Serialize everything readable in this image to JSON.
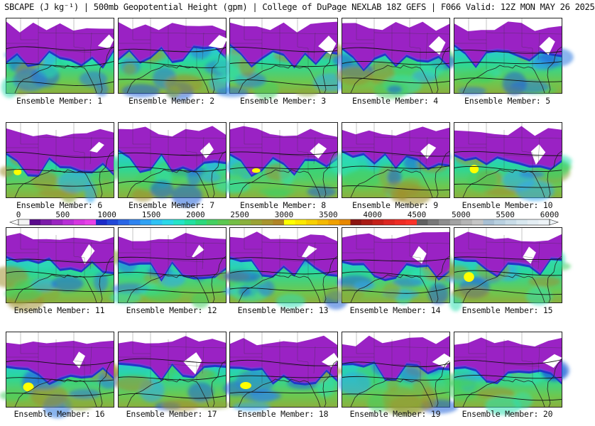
{
  "title": "SBCAPE (J kg⁻¹) | 500mb Geopotential Height (gpm) | College of DuPage NEXLAB 18Z GEFS | F066 Valid: 12Z MON MAY 26 2025",
  "colorbar": {
    "ticks": [
      "0",
      "500",
      "1000",
      "1500",
      "2000",
      "2500",
      "3000",
      "3500",
      "4000",
      "4500",
      "5000",
      "5500",
      "6000"
    ],
    "min": 0,
    "max": 6000,
    "colors": [
      "#f4f4f4",
      "#5a0a8c",
      "#7c1aa8",
      "#9a24c0",
      "#b82ed6",
      "#d636e0",
      "#e842e8",
      "#1a2ac8",
      "#2048d8",
      "#2866e6",
      "#2e84f0",
      "#30a2f4",
      "#2ec2f4",
      "#2ad8e8",
      "#24e4c8",
      "#22e0a0",
      "#2cd87c",
      "#44d060",
      "#5cc850",
      "#74be46",
      "#8ab03c",
      "#9aa234",
      "#a8942e",
      "#b08426",
      "#ffff00",
      "#fce800",
      "#f8d000",
      "#f4b800",
      "#f0a000",
      "#e88800",
      "#8c1410",
      "#a81a14",
      "#c42018",
      "#dc2620",
      "#ee2c24",
      "#fa3228",
      "#606060",
      "#787878",
      "#8e8e8e",
      "#a2a2a2",
      "#b4b4b4",
      "#c6c6c6",
      "#a8c0d4",
      "#b8d0e0",
      "#c8dce8",
      "#d8e8f0",
      "#e4eef4",
      "#eef4f8"
    ]
  },
  "members": [
    {
      "label": "Ensemble Member: 1",
      "cape_hotspots": 0
    },
    {
      "label": "Ensemble Member: 2",
      "cape_hotspots": 0
    },
    {
      "label": "Ensemble Member: 3",
      "cape_hotspots": 0
    },
    {
      "label": "Ensemble Member: 4",
      "cape_hotspots": 0
    },
    {
      "label": "Ensemble Member: 5",
      "cape_hotspots": 0
    },
    {
      "label": "Ensemble Member: 6",
      "cape_hotspots": 1
    },
    {
      "label": "Ensemble Member: 7",
      "cape_hotspots": 0
    },
    {
      "label": "Ensemble Member: 8",
      "cape_hotspots": 1
    },
    {
      "label": "Ensemble Member: 9",
      "cape_hotspots": 0
    },
    {
      "label": "Ensemble Member: 10",
      "cape_hotspots": 1
    },
    {
      "label": "Ensemble Member: 11",
      "cape_hotspots": 0
    },
    {
      "label": "Ensemble Member: 12",
      "cape_hotspots": 0
    },
    {
      "label": "Ensemble Member: 13",
      "cape_hotspots": 0
    },
    {
      "label": "Ensemble Member: 14",
      "cape_hotspots": 0
    },
    {
      "label": "Ensemble Member: 15",
      "cape_hotspots": 1
    },
    {
      "label": "Ensemble Member: 16",
      "cape_hotspots": 1
    },
    {
      "label": "Ensemble Member: 17",
      "cape_hotspots": 0
    },
    {
      "label": "Ensemble Member: 18",
      "cape_hotspots": 1
    },
    {
      "label": "Ensemble Member: 19",
      "cape_hotspots": 0
    },
    {
      "label": "Ensemble Member: 20",
      "cape_hotspots": 0
    }
  ]
}
